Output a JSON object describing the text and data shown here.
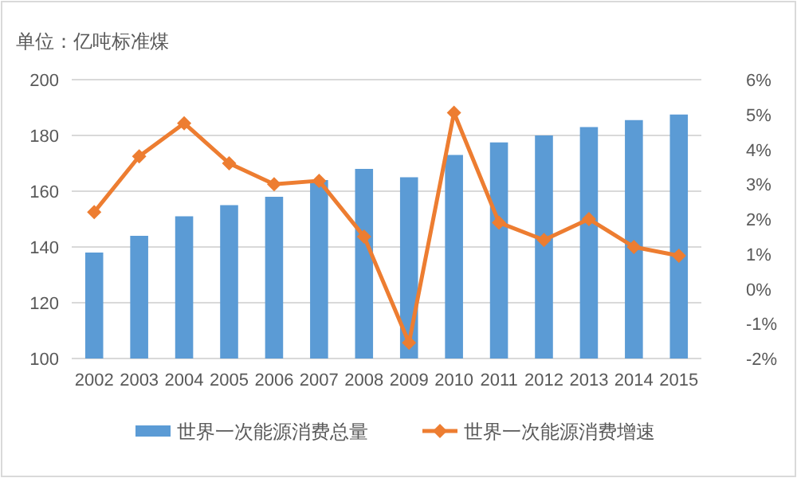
{
  "chart_data": {
    "type": "bar",
    "ylabel": "单位：亿吨标准煤",
    "categories": [
      "2002",
      "2003",
      "2004",
      "2005",
      "2006",
      "2007",
      "2008",
      "2009",
      "2010",
      "2011",
      "2012",
      "2013",
      "2014",
      "2015"
    ],
    "series": [
      {
        "name": "世界一次能源消费总量",
        "color": "#5b9bd5",
        "values": [
          138,
          144,
          151,
          155,
          158,
          164,
          168,
          165,
          173,
          177.5,
          180,
          183,
          185.5,
          187.5
        ]
      },
      {
        "name": "世界一次能源消费增速",
        "type": "line",
        "axis": "y2",
        "color": "#ed7d31",
        "marker": "diamond",
        "values": [
          2.2,
          3.8,
          4.75,
          3.6,
          3.0,
          3.1,
          1.5,
          -1.55,
          5.05,
          1.9,
          1.4,
          2.0,
          1.2,
          0.95
        ]
      }
    ],
    "ylim": [
      100,
      200
    ],
    "yticks": [
      100,
      120,
      140,
      160,
      180,
      200
    ],
    "y2lim": [
      -2,
      6
    ],
    "y2ticks": [
      {
        "value": -2,
        "label": "-2%"
      },
      {
        "value": -1,
        "label": "-1%"
      },
      {
        "value": 0,
        "label": "0%"
      },
      {
        "value": 1,
        "label": "1%"
      },
      {
        "value": 2,
        "label": "2%"
      },
      {
        "value": 3,
        "label": "3%"
      },
      {
        "value": 4,
        "label": "4%"
      },
      {
        "value": 5,
        "label": "5%"
      },
      {
        "value": 6,
        "label": "6%"
      }
    ],
    "grid": "y",
    "legend": "bottom"
  }
}
